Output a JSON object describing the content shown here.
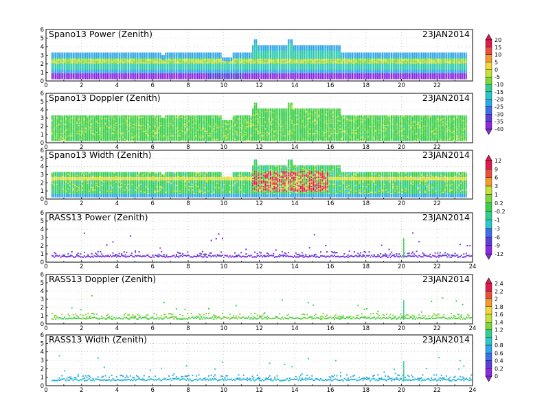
{
  "chart_data": [
    {
      "type": "heatmap",
      "title": "Spano13 Power (Zenith)",
      "date": "23JAN2014",
      "x_ticks": [
        "0",
        "2",
        "4",
        "6",
        "8",
        "10",
        "12",
        "14",
        "16",
        "18",
        "20",
        "22"
      ],
      "xlim": [
        0,
        24
      ],
      "y_ticks": [
        "0",
        "1",
        "2",
        "3",
        "4",
        "5",
        "6"
      ],
      "ylim": [
        0,
        6
      ],
      "grid": true,
      "colorbar": [
        "20",
        "15",
        "10",
        "5",
        "0",
        "-5",
        "-10",
        "-15",
        "-20",
        "-25",
        "-30",
        "-35",
        "-40"
      ]
    },
    {
      "type": "heatmap",
      "title": "Spano13 Doppler (Zenith)",
      "date": "23JAN2014",
      "x_ticks": [
        "0",
        "2",
        "4",
        "6",
        "8",
        "10",
        "12",
        "14",
        "16",
        "18",
        "20",
        "22"
      ],
      "xlim": [
        0,
        24
      ],
      "y_ticks": [
        "0",
        "1",
        "2",
        "3",
        "4",
        "5",
        "6"
      ],
      "ylim": [
        0,
        6
      ],
      "grid": true
    },
    {
      "type": "heatmap",
      "title": "Spano13 Width (Zenith)",
      "date": "23JAN2014",
      "x_ticks": [
        "0",
        "2",
        "4",
        "6",
        "8",
        "10",
        "12",
        "14",
        "16",
        "18",
        "20",
        "22"
      ],
      "xlim": [
        0,
        24
      ],
      "y_ticks": [
        "0",
        "1",
        "2",
        "3",
        "4",
        "5",
        "6"
      ],
      "ylim": [
        0,
        6
      ],
      "grid": true,
      "colorbar": [
        "12",
        "9",
        "6",
        "3",
        "1",
        "0.2",
        "-0.2",
        "-1",
        "-3",
        "-6",
        "-9",
        "-12"
      ]
    },
    {
      "type": "heatmap",
      "title": "RASS13 Power (Zenith)",
      "date": "23JAN2014",
      "x_ticks": [
        "0",
        "2",
        "4",
        "6",
        "8",
        "10",
        "12",
        "14",
        "16",
        "18",
        "20",
        "22",
        "24"
      ],
      "xlim": [
        0,
        24
      ],
      "y_ticks": [
        "0",
        "1",
        "2",
        "3",
        "4",
        "5",
        "6"
      ],
      "ylim": [
        0,
        6
      ],
      "grid": true
    },
    {
      "type": "heatmap",
      "title": "RASS13 Doppler (Zenith)",
      "date": "23JAN2014",
      "x_ticks": [
        "0",
        "2",
        "4",
        "6",
        "8",
        "10",
        "12",
        "14",
        "16",
        "18",
        "20",
        "22",
        "24"
      ],
      "xlim": [
        0,
        24
      ],
      "y_ticks": [
        "0",
        "1",
        "2",
        "3",
        "4",
        "5",
        "6"
      ],
      "ylim": [
        0,
        6
      ],
      "grid": true,
      "colorbar": [
        "2.4",
        "2.2",
        "2",
        "1.8",
        "1.6",
        "1.4",
        "1.2",
        "1",
        "0.8",
        "0.6",
        "0.4",
        "0.2",
        "0"
      ]
    },
    {
      "type": "heatmap",
      "title": "RASS13 Width (Zenith)",
      "date": "23JAN2014",
      "x_ticks": [
        "0",
        "2",
        "4",
        "6",
        "8",
        "10",
        "12",
        "14",
        "16",
        "18",
        "20",
        "22",
        "24"
      ],
      "xlim": [
        0,
        24
      ],
      "y_ticks": [
        "0",
        "1",
        "2",
        "3",
        "4",
        "5",
        "6"
      ],
      "ylim": [
        0,
        6
      ],
      "grid": true
    }
  ],
  "colors": {
    "scale": [
      "#8a2be2",
      "#5b3fd6",
      "#3f6fe8",
      "#2fa7e8",
      "#2cc9c9",
      "#2fcf8f",
      "#38d04a",
      "#7fd83a",
      "#c8e03a",
      "#f2d83a",
      "#f29a2e",
      "#e8503a",
      "#e01a4f"
    ]
  }
}
